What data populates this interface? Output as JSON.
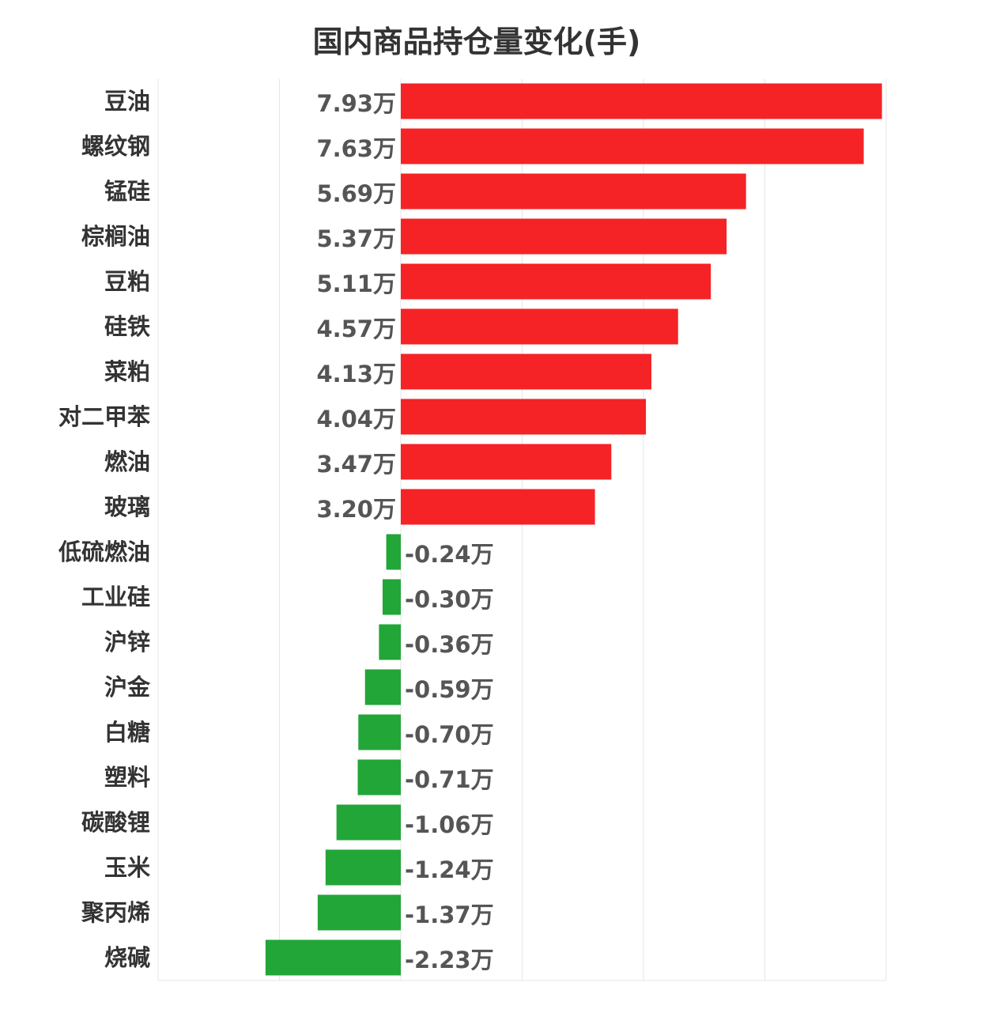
{
  "chart_data": {
    "type": "bar",
    "orientation": "horizontal",
    "title": "国内商品持仓量变化(手)",
    "xlabel": "",
    "ylabel": "",
    "unit_suffix": "万",
    "grid": true,
    "xlim": [
      -4,
      8
    ],
    "categories": [
      "豆油",
      "螺纹钢",
      "锰硅",
      "棕榈油",
      "豆粕",
      "硅铁",
      "菜粕",
      "对二甲苯",
      "燃油",
      "玻璃",
      "低硫燃油",
      "工业硅",
      "沪锌",
      "沪金",
      "白糖",
      "塑料",
      "碳酸锂",
      "玉米",
      "聚丙烯",
      "烧碱"
    ],
    "values": [
      7.93,
      7.63,
      5.69,
      5.37,
      5.11,
      4.57,
      4.13,
      4.04,
      3.47,
      3.2,
      -0.24,
      -0.3,
      -0.36,
      -0.59,
      -0.7,
      -0.71,
      -1.06,
      -1.24,
      -1.37,
      -2.23
    ],
    "value_labels": [
      "7.93万",
      "7.63万",
      "5.69万",
      "5.37万",
      "5.11万",
      "4.57万",
      "4.13万",
      "4.04万",
      "3.47万",
      "3.20万",
      "-0.24万",
      "-0.30万",
      "-0.36万",
      "-0.59万",
      "-0.70万",
      "-0.71万",
      "-1.06万",
      "-1.24万",
      "-1.37万",
      "-2.23万"
    ],
    "colors": {
      "positive": "#f52325",
      "negative": "#22a638",
      "grid": "#e6e6e6"
    }
  }
}
